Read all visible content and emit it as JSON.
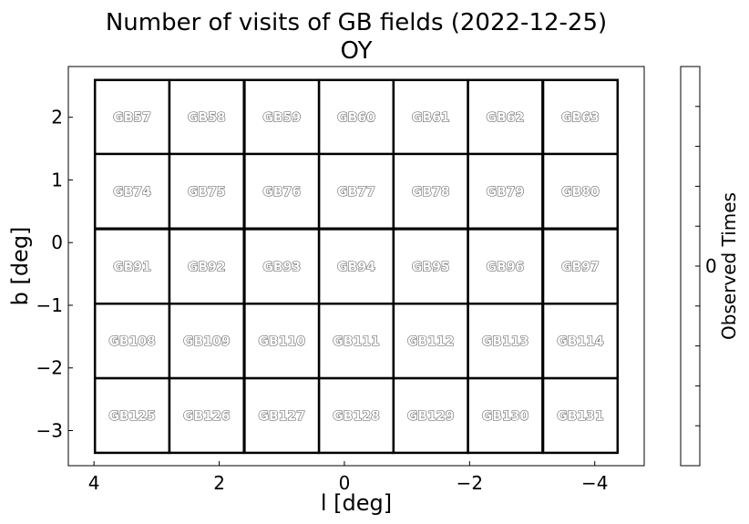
{
  "chart_data": {
    "type": "heatmap",
    "title": "Number of visits of GB fields (2022-12-25)",
    "subtitle": "OY",
    "xlabel": "l [deg]",
    "ylabel": "b [deg]",
    "xlim": [
      4.41,
      -4.79
    ],
    "ylim": [
      -3.56,
      2.81
    ],
    "xticks": [
      4,
      2,
      0,
      -2,
      -4
    ],
    "xtick_labels": [
      "4",
      "2",
      "0",
      "−2",
      "−4"
    ],
    "yticks": [
      2,
      1,
      0,
      -1,
      -2,
      -3
    ],
    "ytick_labels": [
      "2",
      "1",
      "0",
      "−1",
      "−2",
      "−3"
    ],
    "grid": false,
    "field_size_deg": 1.19,
    "colorbar": {
      "label": "Observed Times",
      "ticks": [
        0
      ],
      "tick_labels": [
        "0"
      ]
    },
    "fields": [
      {
        "name": "GB57",
        "l": 3.39,
        "b": 2.0,
        "value": 0
      },
      {
        "name": "GB58",
        "l": 2.2,
        "b": 2.0,
        "value": 0
      },
      {
        "name": "GB59",
        "l": 1.0,
        "b": 2.0,
        "value": 0
      },
      {
        "name": "GB60",
        "l": -0.19,
        "b": 2.0,
        "value": 0
      },
      {
        "name": "GB61",
        "l": -1.38,
        "b": 2.0,
        "value": 0
      },
      {
        "name": "GB62",
        "l": -2.57,
        "b": 2.0,
        "value": 0
      },
      {
        "name": "GB63",
        "l": -3.77,
        "b": 2.0,
        "value": 0
      },
      {
        "name": "GB74",
        "l": 3.39,
        "b": 0.82,
        "value": 0
      },
      {
        "name": "GB75",
        "l": 2.2,
        "b": 0.82,
        "value": 0
      },
      {
        "name": "GB76",
        "l": 1.0,
        "b": 0.82,
        "value": 0
      },
      {
        "name": "GB77",
        "l": -0.19,
        "b": 0.82,
        "value": 0
      },
      {
        "name": "GB78",
        "l": -1.38,
        "b": 0.82,
        "value": 0
      },
      {
        "name": "GB79",
        "l": -2.57,
        "b": 0.82,
        "value": 0
      },
      {
        "name": "GB80",
        "l": -3.77,
        "b": 0.82,
        "value": 0
      },
      {
        "name": "GB91",
        "l": 3.39,
        "b": -0.38,
        "value": 0
      },
      {
        "name": "GB92",
        "l": 2.2,
        "b": -0.38,
        "value": 0
      },
      {
        "name": "GB93",
        "l": 1.0,
        "b": -0.38,
        "value": 0
      },
      {
        "name": "GB94",
        "l": -0.19,
        "b": -0.38,
        "value": 0
      },
      {
        "name": "GB95",
        "l": -1.38,
        "b": -0.38,
        "value": 0
      },
      {
        "name": "GB96",
        "l": -2.57,
        "b": -0.38,
        "value": 0
      },
      {
        "name": "GB97",
        "l": -3.77,
        "b": -0.38,
        "value": 0
      },
      {
        "name": "GB108",
        "l": 3.39,
        "b": -1.57,
        "value": 0
      },
      {
        "name": "GB109",
        "l": 2.2,
        "b": -1.57,
        "value": 0
      },
      {
        "name": "GB110",
        "l": 1.0,
        "b": -1.57,
        "value": 0
      },
      {
        "name": "GB111",
        "l": -0.19,
        "b": -1.57,
        "value": 0
      },
      {
        "name": "GB112",
        "l": -1.38,
        "b": -1.57,
        "value": 0
      },
      {
        "name": "GB113",
        "l": -2.57,
        "b": -1.57,
        "value": 0
      },
      {
        "name": "GB114",
        "l": -3.77,
        "b": -1.57,
        "value": 0
      },
      {
        "name": "GB125",
        "l": 3.39,
        "b": -2.76,
        "value": 0
      },
      {
        "name": "GB126",
        "l": 2.2,
        "b": -2.76,
        "value": 0
      },
      {
        "name": "GB127",
        "l": 1.0,
        "b": -2.76,
        "value": 0
      },
      {
        "name": "GB128",
        "l": -0.19,
        "b": -2.76,
        "value": 0
      },
      {
        "name": "GB129",
        "l": -1.38,
        "b": -2.76,
        "value": 0
      },
      {
        "name": "GB130",
        "l": -2.57,
        "b": -2.76,
        "value": 0
      },
      {
        "name": "GB131",
        "l": -3.77,
        "b": -2.76,
        "value": 0
      }
    ]
  }
}
